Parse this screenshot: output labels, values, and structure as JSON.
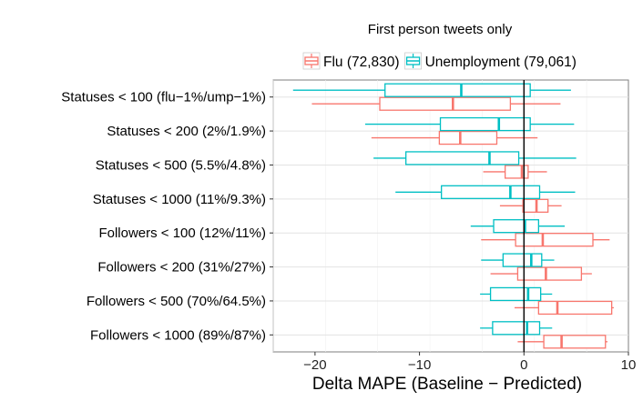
{
  "chart_data": {
    "type": "boxplot",
    "orientation": "horizontal",
    "title": "First person tweets only",
    "xlabel": "Delta MAPE (Baseline − Predicted)",
    "ylabel": "",
    "xlim": [
      -24,
      10
    ],
    "x_ticks": [
      -20,
      -10,
      0,
      10
    ],
    "x_tick_labels": [
      "−20",
      "−10",
      "0",
      "10"
    ],
    "grid": true,
    "reference_line_x": 0,
    "legend": {
      "placement": "top"
    },
    "categories": [
      "Statuses < 100 (flu−1%/ump−1%)",
      "Statuses < 200 (2%/1.9%)",
      "Statuses < 500 (5.5%/4.8%)",
      "Statuses < 1000 (11%/9.3%)",
      "Followers < 100 (12%/11%)",
      "Followers < 200 (31%/27%)",
      "Followers < 500 (70%/64.5%)",
      "Followers < 1000 (89%/87%)"
    ],
    "series": [
      {
        "name": "Flu (72,830)",
        "color": "#F8766D",
        "boxes": [
          {
            "whisker_low": -20.3,
            "q1": -13.8,
            "median": -6.8,
            "q3": -1.3,
            "whisker_high": 3.5
          },
          {
            "whisker_low": -14.6,
            "q1": -8.1,
            "median": -6.1,
            "q3": -2.6,
            "whisker_high": 1.3
          },
          {
            "whisker_low": -3.9,
            "q1": -1.8,
            "median": -0.2,
            "q3": 0.4,
            "whisker_high": 2.2
          },
          {
            "whisker_low": -2.3,
            "q1": -0.1,
            "median": 1.2,
            "q3": 2.3,
            "whisker_high": 3.6
          },
          {
            "whisker_low": -4.1,
            "q1": -0.8,
            "median": 1.8,
            "q3": 6.6,
            "whisker_high": 8.2
          },
          {
            "whisker_low": -3.2,
            "q1": -0.6,
            "median": 2.1,
            "q3": 5.5,
            "whisker_high": 6.5
          },
          {
            "whisker_low": -0.9,
            "q1": 1.4,
            "median": 3.2,
            "q3": 8.4,
            "whisker_high": 8.6
          },
          {
            "whisker_low": -0.6,
            "q1": 1.9,
            "median": 3.6,
            "q3": 7.8,
            "whisker_high": 8.0
          }
        ]
      },
      {
        "name": "Unemployment (79,061)",
        "color": "#00BFC4",
        "boxes": [
          {
            "whisker_low": -22.1,
            "q1": -13.3,
            "median": -6.0,
            "q3": 0.6,
            "whisker_high": 4.5
          },
          {
            "whisker_low": -15.2,
            "q1": -8.0,
            "median": -2.4,
            "q3": 0.6,
            "whisker_high": 4.8
          },
          {
            "whisker_low": -14.4,
            "q1": -11.3,
            "median": -3.3,
            "q3": -0.5,
            "whisker_high": 5.0
          },
          {
            "whisker_low": -12.3,
            "q1": -7.9,
            "median": -1.3,
            "q3": 1.5,
            "whisker_high": 4.9
          },
          {
            "whisker_low": -5.1,
            "q1": -2.9,
            "median": 0.1,
            "q3": 1.4,
            "whisker_high": 3.9
          },
          {
            "whisker_low": -4.1,
            "q1": -2.0,
            "median": 0.7,
            "q3": 1.7,
            "whisker_high": 2.9
          },
          {
            "whisker_low": -4.2,
            "q1": -3.2,
            "median": 0.4,
            "q3": 1.6,
            "whisker_high": 2.7
          },
          {
            "whisker_low": -4.2,
            "q1": -3.0,
            "median": 0.3,
            "q3": 1.5,
            "whisker_high": 2.7
          }
        ]
      }
    ]
  }
}
